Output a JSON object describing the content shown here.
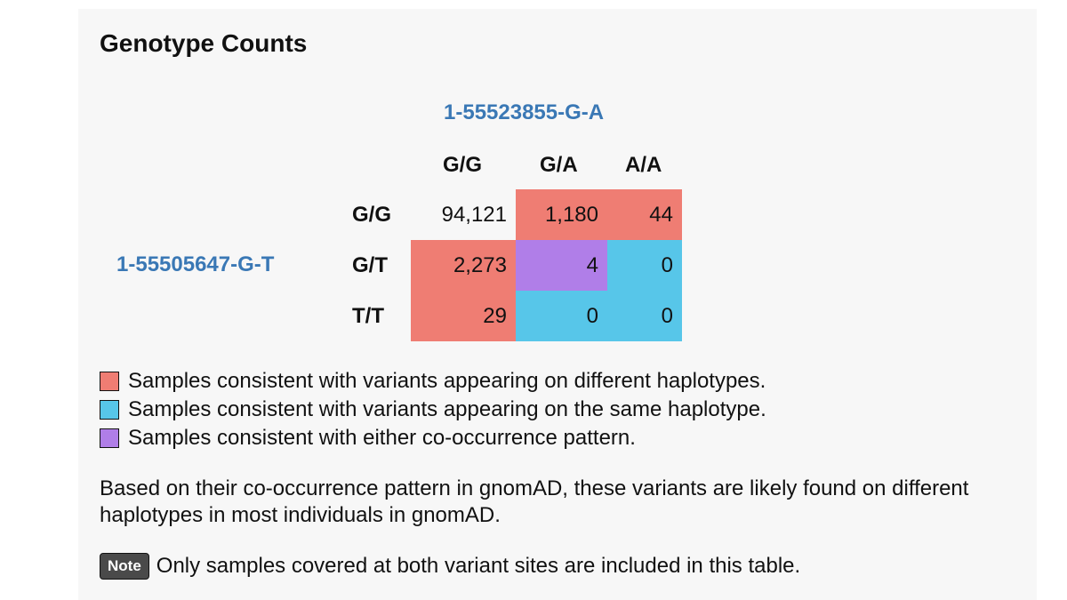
{
  "title": "Genotype Counts",
  "column_variant": "1-55523855-G-A",
  "row_variant": "1-55505647-G-T",
  "column_headers": [
    "G/G",
    "G/A",
    "A/A"
  ],
  "row_headers": [
    "G/G",
    "G/T",
    "T/T"
  ],
  "cells": [
    [
      {
        "value": "94,121",
        "category": "none"
      },
      {
        "value": "1,180",
        "category": "different"
      },
      {
        "value": "44",
        "category": "different"
      }
    ],
    [
      {
        "value": "2,273",
        "category": "different"
      },
      {
        "value": "4",
        "category": "either"
      },
      {
        "value": "0",
        "category": "same"
      }
    ],
    [
      {
        "value": "29",
        "category": "different"
      },
      {
        "value": "0",
        "category": "same"
      },
      {
        "value": "0",
        "category": "same"
      }
    ]
  ],
  "colors": {
    "different": "#ef7d73",
    "same": "#57c6e9",
    "either": "#b07ee8",
    "variant_link": "#3a78b5"
  },
  "legend": [
    {
      "label": "Samples consistent with variants appearing on different haplotypes.",
      "color": "#ef7d73"
    },
    {
      "label": "Samples consistent with variants appearing on the same haplotype.",
      "color": "#57c6e9"
    },
    {
      "label": "Samples consistent with either co-occurrence pattern.",
      "color": "#b07ee8"
    }
  ],
  "summary": "Based on their co-occurrence pattern in gnomAD, these variants are likely found on different haplotypes in most individuals in gnomAD.",
  "note": {
    "badge": "Note",
    "text": "Only samples covered at both variant sites are included in this table."
  }
}
